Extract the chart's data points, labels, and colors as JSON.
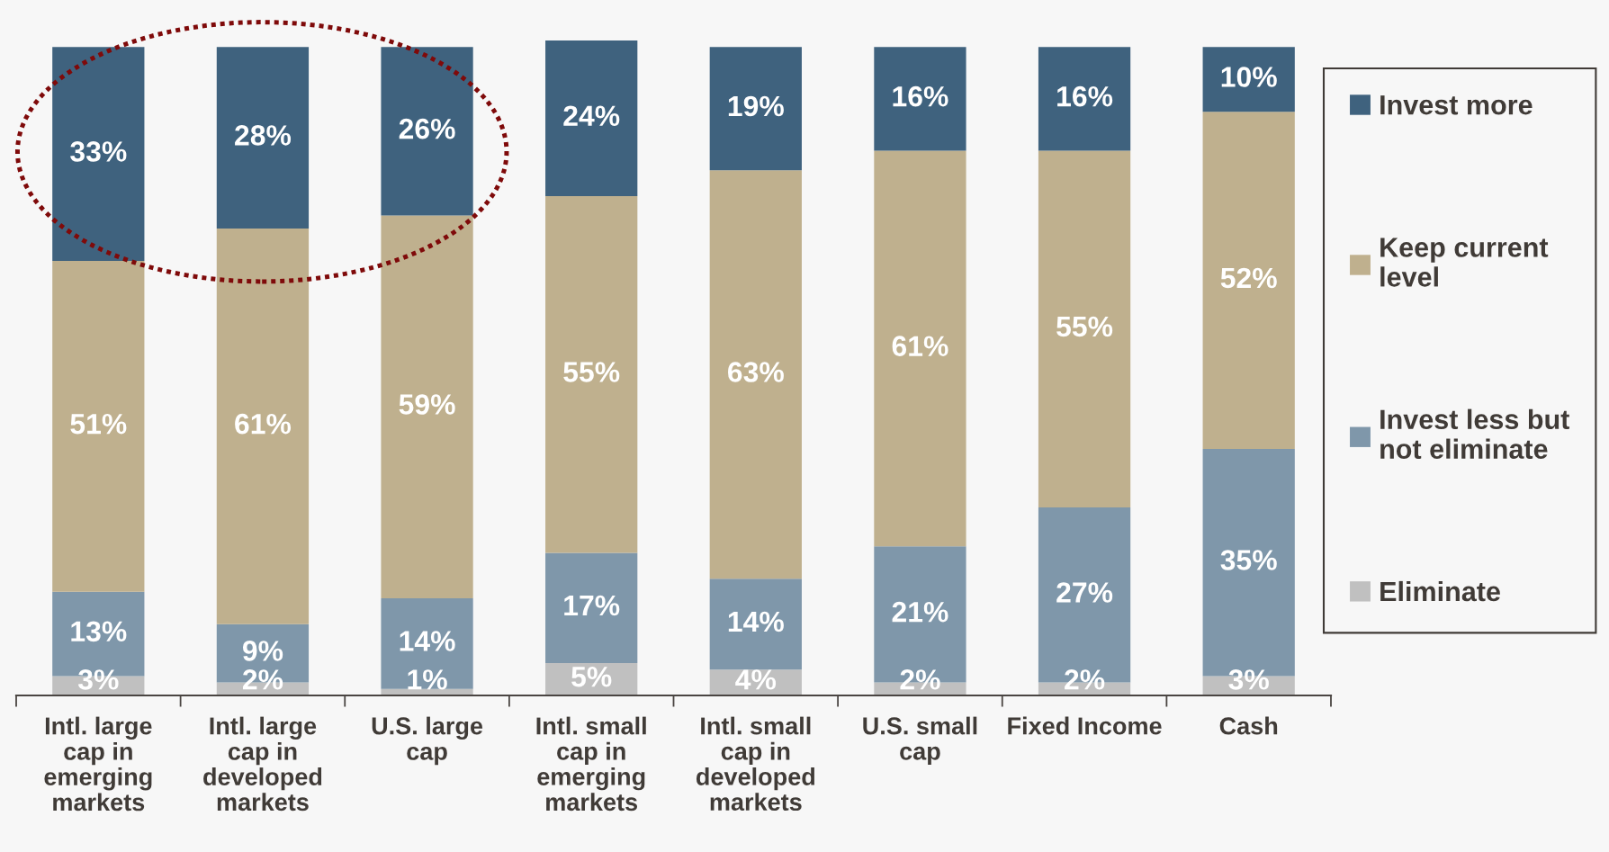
{
  "chart_data": {
    "type": "bar",
    "stacked": true,
    "tick_labels": "x",
    "legend": "right",
    "categories": [
      "Intl. large\ncap in\nemerging\nmarkets",
      "Intl. large\ncap in\ndeveloped\nmarkets",
      "U.S. large\ncap",
      "Intl. small\ncap in\nemerging\nmarkets",
      "Intl. small\ncap in\ndeveloped\nmarkets",
      "U.S. small\ncap",
      "Fixed Income",
      "Cash"
    ],
    "series": [
      {
        "name": "Eliminate",
        "color": "#c0c0c0",
        "values": [
          3,
          2,
          1,
          5,
          4,
          2,
          2,
          3
        ],
        "value_labels": [
          "3%",
          "2%",
          "1%",
          "5%",
          "4%",
          "2%",
          "2%",
          "3%"
        ]
      },
      {
        "name": "Invest less but\nnot eliminate",
        "color": "#7f97aa",
        "values": [
          13,
          9,
          14,
          17,
          14,
          21,
          27,
          35
        ],
        "value_labels": [
          "13%",
          "9%",
          "14%",
          "17%",
          "14%",
          "21%",
          "27%",
          "35%"
        ]
      },
      {
        "name": "Keep current\nlevel",
        "color": "#bfb08e",
        "values": [
          51,
          61,
          59,
          55,
          63,
          61,
          55,
          52
        ],
        "value_labels": [
          "51%",
          "61%",
          "59%",
          "55%",
          "63%",
          "61%",
          "55%",
          "52%"
        ]
      },
      {
        "name": "Invest more",
        "color": "#3f627e",
        "values": [
          33,
          28,
          26,
          24,
          19,
          16,
          16,
          10
        ],
        "value_labels": [
          "33%",
          "28%",
          "26%",
          "24%",
          "19%",
          "16%",
          "16%",
          "10%"
        ]
      }
    ]
  }
}
